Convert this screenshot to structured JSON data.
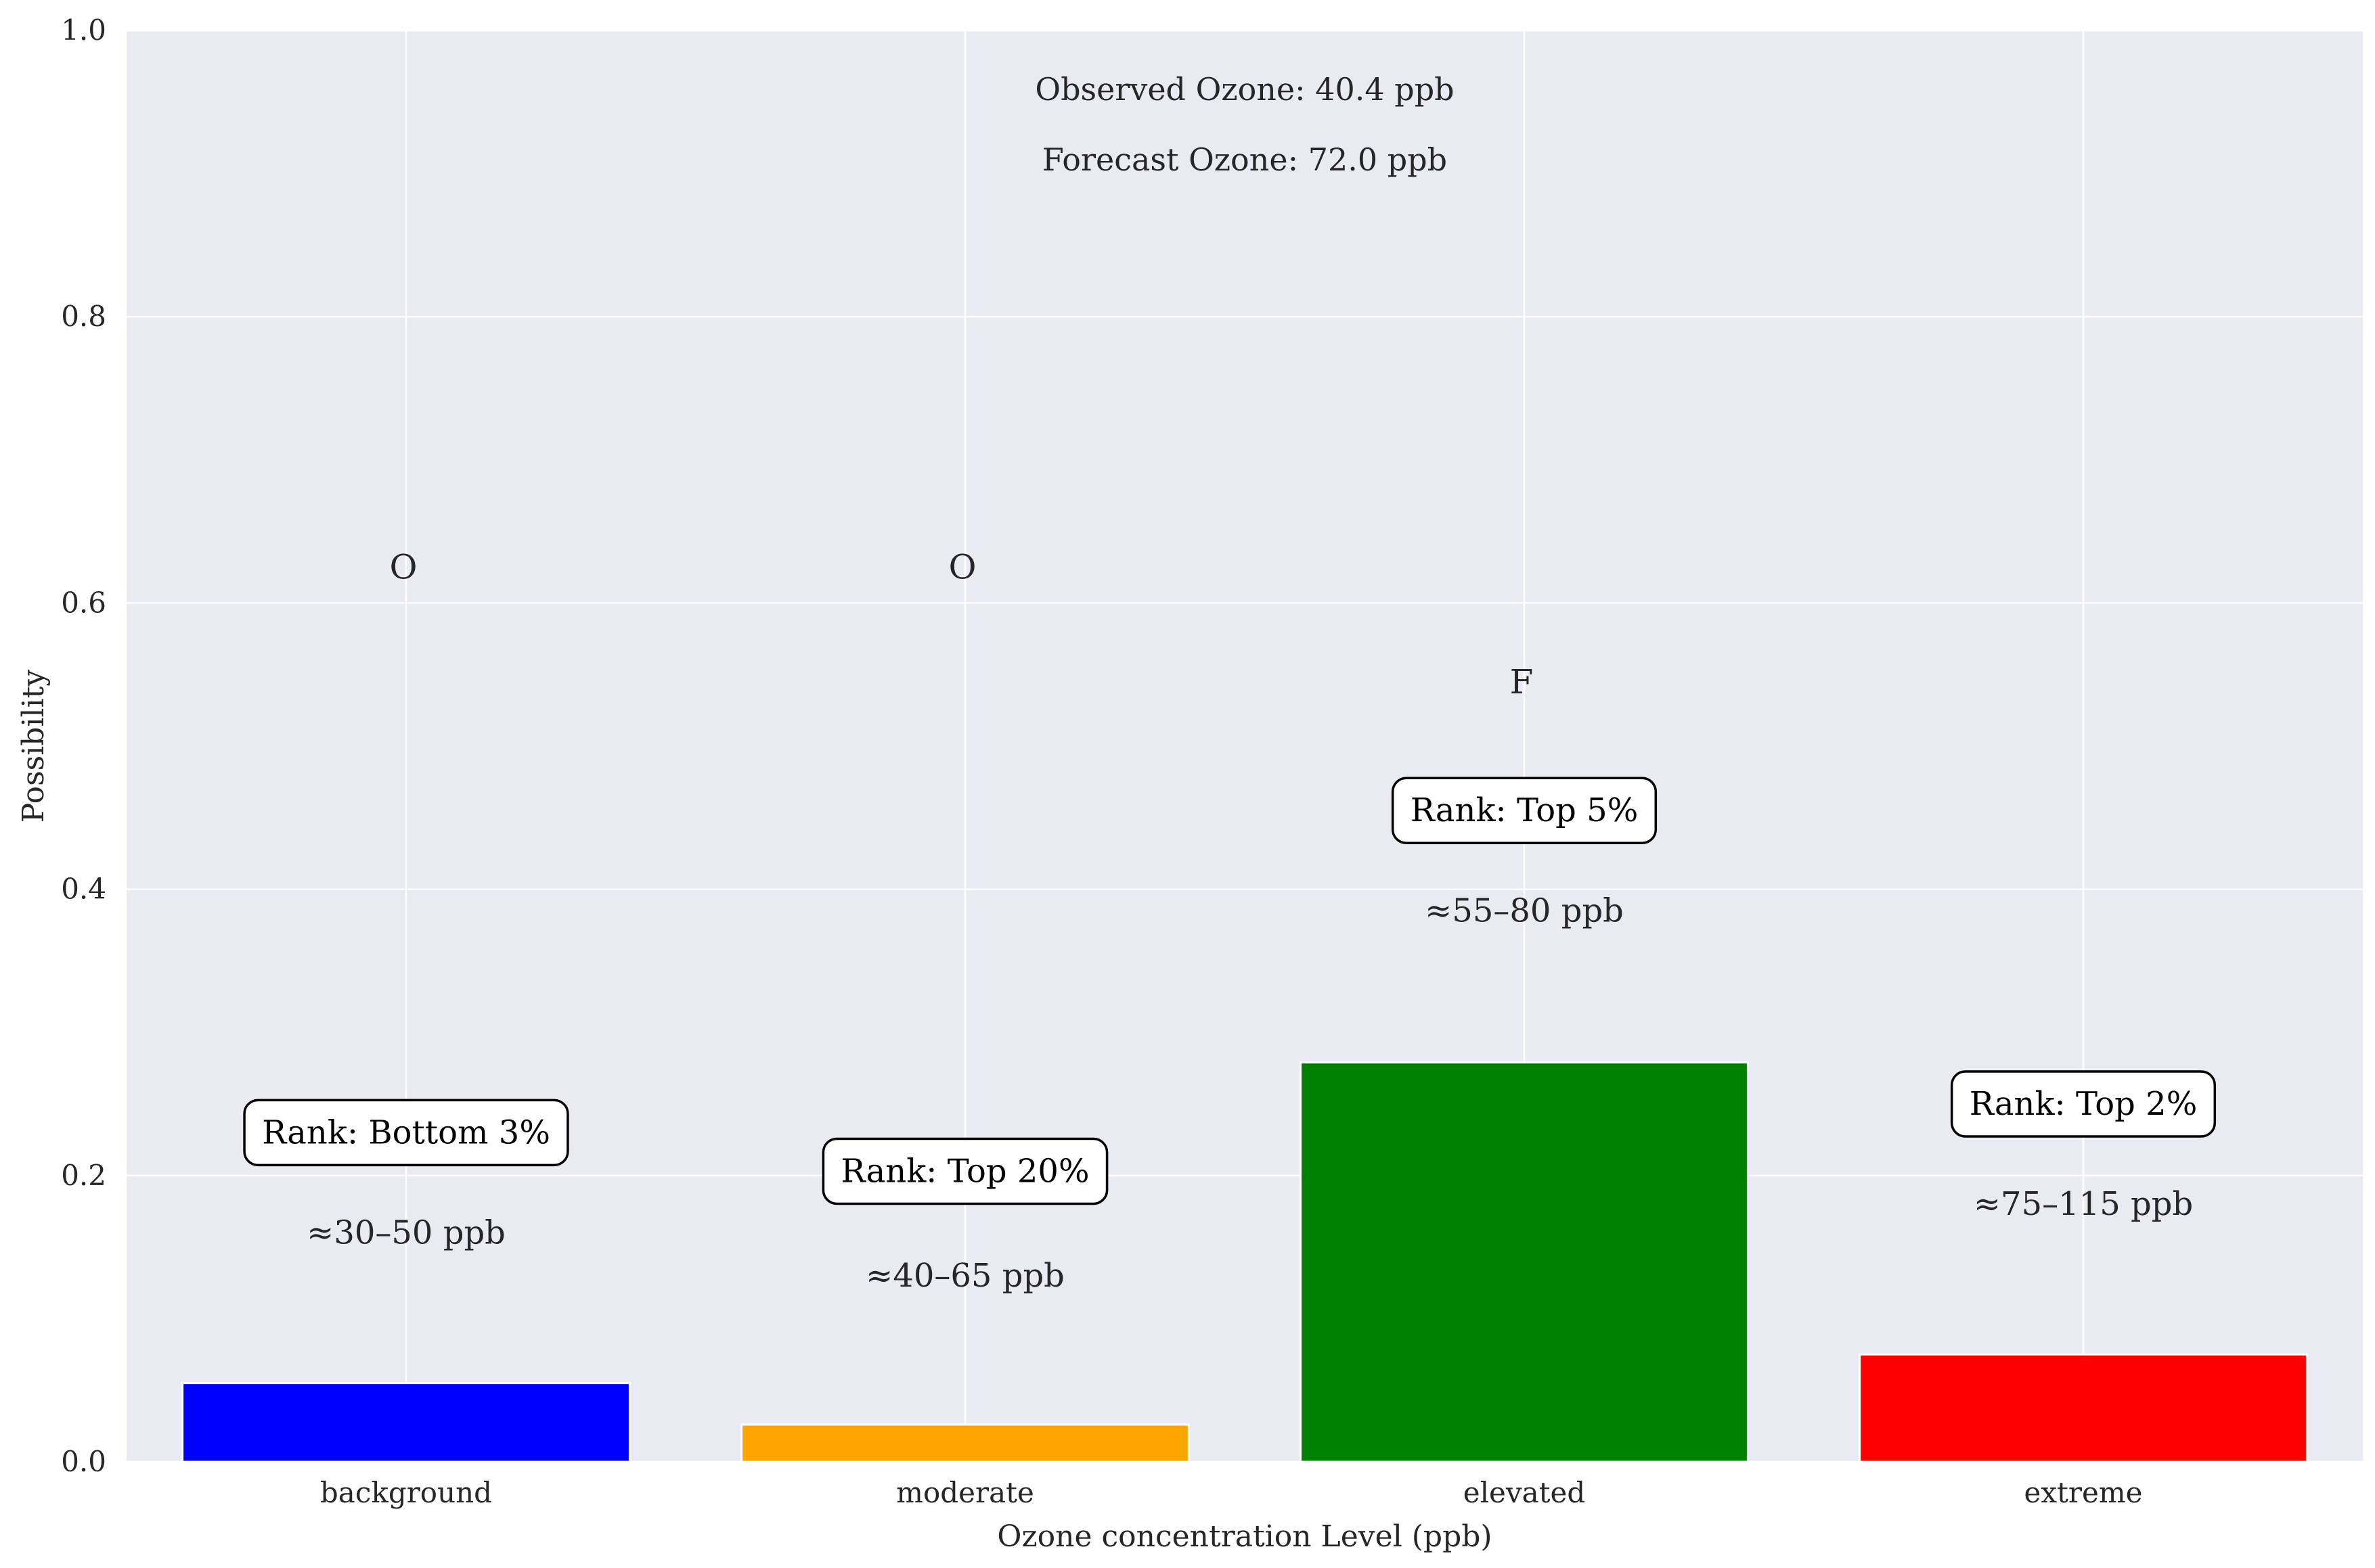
{
  "chart_data": {
    "type": "bar",
    "categories": [
      "background",
      "moderate",
      "elevated",
      "extreme"
    ],
    "values": [
      0.055,
      0.026,
      0.279,
      0.075
    ],
    "colors": [
      "#0000ff",
      "#ffa500",
      "#008000",
      "#ff0000"
    ],
    "xlabel": "Ozone concentration Level (ppb)",
    "ylabel": "Possibility",
    "ylim": [
      0,
      1.0
    ],
    "yticks": [
      "0.0",
      "0.2",
      "0.4",
      "0.6",
      "0.8",
      "1.0"
    ],
    "grid": true,
    "background_color": "#eaeaf2",
    "annotations": {
      "observed": "Observed Ozone: 40.4 ppb",
      "forecast": "Forecast Ozone: 72.0 ppb"
    },
    "markers": [
      {
        "category": "background",
        "label": "O",
        "y": 0.625
      },
      {
        "category": "moderate",
        "label": "O",
        "y": 0.625
      },
      {
        "category": "elevated",
        "label": "F",
        "y": 0.545
      }
    ],
    "ranks": [
      {
        "category": "background",
        "label": "Rank: Bottom 3%",
        "y": 0.23
      },
      {
        "category": "moderate",
        "label": "Rank: Top 20%",
        "y": 0.203
      },
      {
        "category": "elevated",
        "label": "Rank: Top 5%",
        "y": 0.455
      },
      {
        "category": "extreme",
        "label": "Rank: Top 2%",
        "y": 0.25
      }
    ],
    "ranges": [
      {
        "category": "background",
        "label": "≈30–50 ppb",
        "y": 0.16
      },
      {
        "category": "moderate",
        "label": "≈40–65 ppb",
        "y": 0.13
      },
      {
        "category": "elevated",
        "label": "≈55–80 ppb",
        "y": 0.385
      },
      {
        "category": "extreme",
        "label": "≈75–115 ppb",
        "y": 0.18
      }
    ]
  }
}
